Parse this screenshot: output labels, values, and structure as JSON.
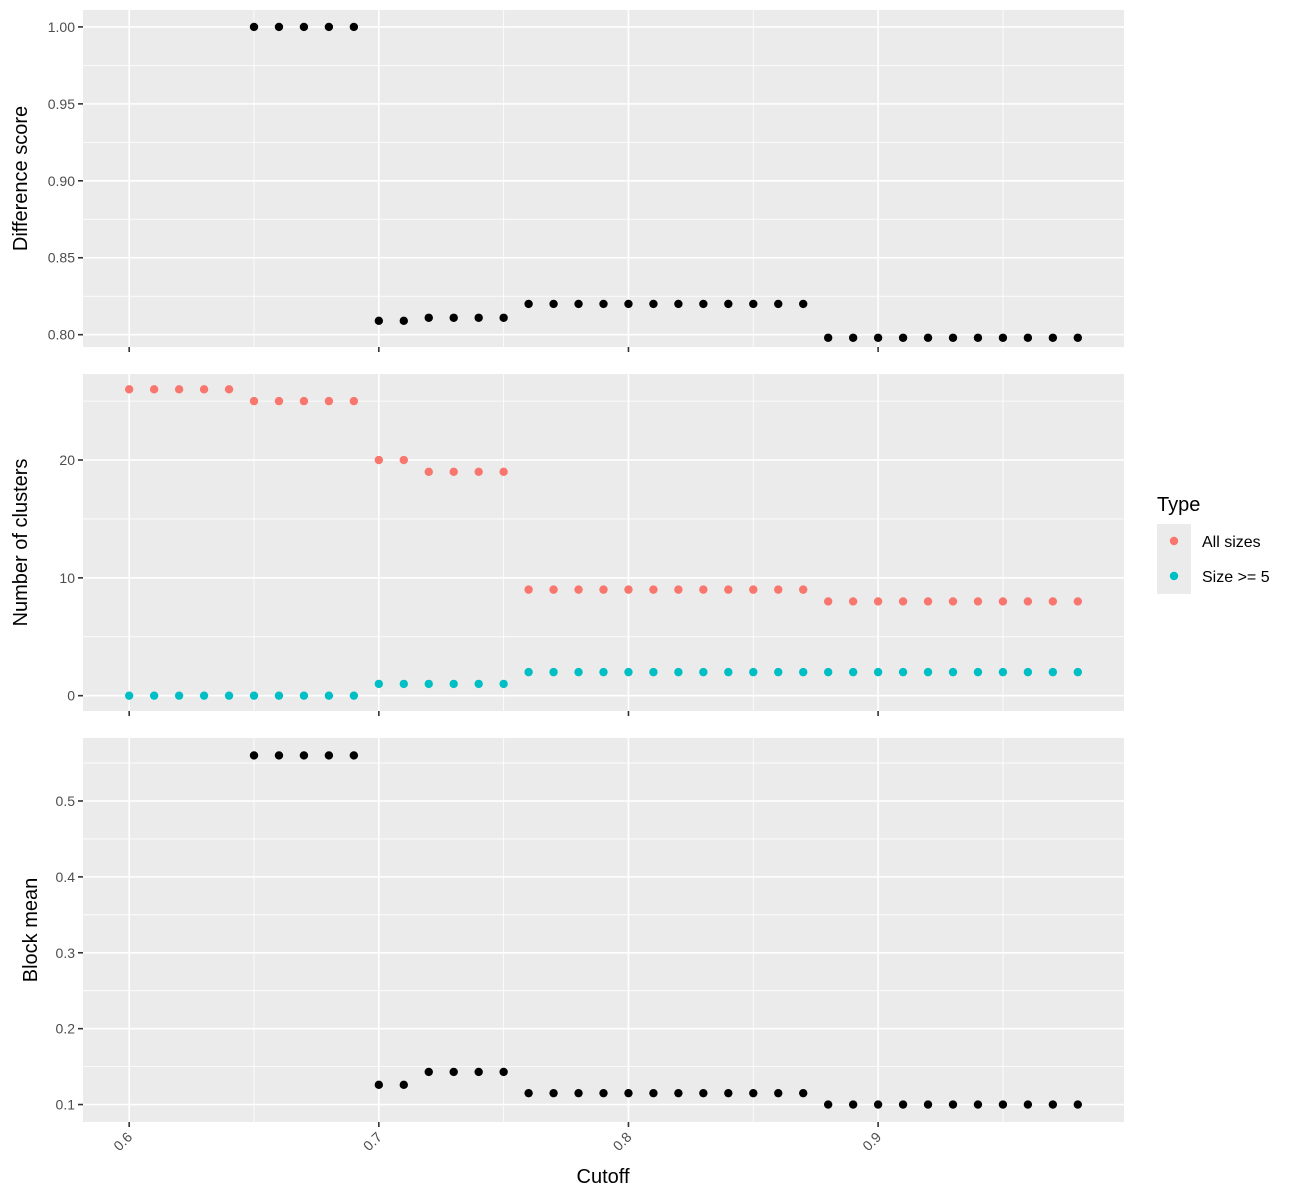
{
  "chart_data": {
    "type": "scatter",
    "xlabel": "Cutoff",
    "x": [
      0.6,
      0.61,
      0.62,
      0.63,
      0.64,
      0.65,
      0.66,
      0.67,
      0.68,
      0.69,
      0.7,
      0.71,
      0.72,
      0.73,
      0.74,
      0.75,
      0.76,
      0.77,
      0.78,
      0.79,
      0.8,
      0.81,
      0.82,
      0.83,
      0.84,
      0.85,
      0.86,
      0.87,
      0.88,
      0.89,
      0.9,
      0.91,
      0.92,
      0.93,
      0.94,
      0.95,
      0.96,
      0.97,
      0.98
    ],
    "x_ticks": [
      "0.6",
      "0.7",
      "0.8",
      "0.9"
    ],
    "grid": true,
    "legend": {
      "title": "Type",
      "placement": "right",
      "entries": [
        {
          "label": "All sizes",
          "color": "#F8766D"
        },
        {
          "label": "Size >= 5",
          "color": "#00BFC4"
        }
      ]
    },
    "panels": [
      {
        "ylabel": "Difference score",
        "ylim": [
          0.792,
          1.011
        ],
        "y_ticks": [
          "0.80",
          "0.85",
          "0.90",
          "0.95",
          "1.00"
        ],
        "series": [
          {
            "color": "#000000",
            "start_index": 5,
            "values": [
              1.0,
              1.0,
              1.0,
              1.0,
              1.0,
              0.809,
              0.809,
              0.811,
              0.811,
              0.811,
              0.811,
              0.82,
              0.82,
              0.82,
              0.82,
              0.82,
              0.82,
              0.82,
              0.82,
              0.82,
              0.82,
              0.82,
              0.82,
              0.798,
              0.798,
              0.798,
              0.798,
              0.798,
              0.798,
              0.798,
              0.798,
              0.798,
              0.798,
              0.798
            ]
          }
        ]
      },
      {
        "ylabel": "Number of clusters",
        "ylim": [
          -1.3,
          27.3
        ],
        "y_ticks": [
          "0",
          "10",
          "20"
        ],
        "series": [
          {
            "name": "All sizes",
            "color": "#F8766D",
            "start_index": 0,
            "values": [
              26,
              26,
              26,
              26,
              26,
              25,
              25,
              25,
              25,
              25,
              20,
              20,
              19,
              19,
              19,
              19,
              9,
              9,
              9,
              9,
              9,
              9,
              9,
              9,
              9,
              9,
              9,
              9,
              8,
              8,
              8,
              8,
              8,
              8,
              8,
              8,
              8,
              8,
              8
            ]
          },
          {
            "name": "Size >= 5",
            "color": "#00BFC4",
            "start_index": 0,
            "values": [
              0,
              0,
              0,
              0,
              0,
              0,
              0,
              0,
              0,
              0,
              1,
              1,
              1,
              1,
              1,
              1,
              2,
              2,
              2,
              2,
              2,
              2,
              2,
              2,
              2,
              2,
              2,
              2,
              2,
              2,
              2,
              2,
              2,
              2,
              2,
              2,
              2,
              2,
              2
            ]
          }
        ]
      },
      {
        "ylabel": "Block mean",
        "ylim": [
          0.077,
          0.583
        ],
        "y_ticks": [
          "0.1",
          "0.2",
          "0.3",
          "0.4",
          "0.5"
        ],
        "series": [
          {
            "color": "#000000",
            "start_index": 5,
            "values": [
              0.56,
              0.56,
              0.56,
              0.56,
              0.56,
              0.126,
              0.126,
              0.143,
              0.143,
              0.143,
              0.143,
              0.115,
              0.115,
              0.115,
              0.115,
              0.115,
              0.115,
              0.115,
              0.115,
              0.115,
              0.115,
              0.115,
              0.115,
              0.1,
              0.1,
              0.1,
              0.1,
              0.1,
              0.1,
              0.1,
              0.1,
              0.1,
              0.1,
              0.1
            ]
          }
        ]
      }
    ]
  }
}
